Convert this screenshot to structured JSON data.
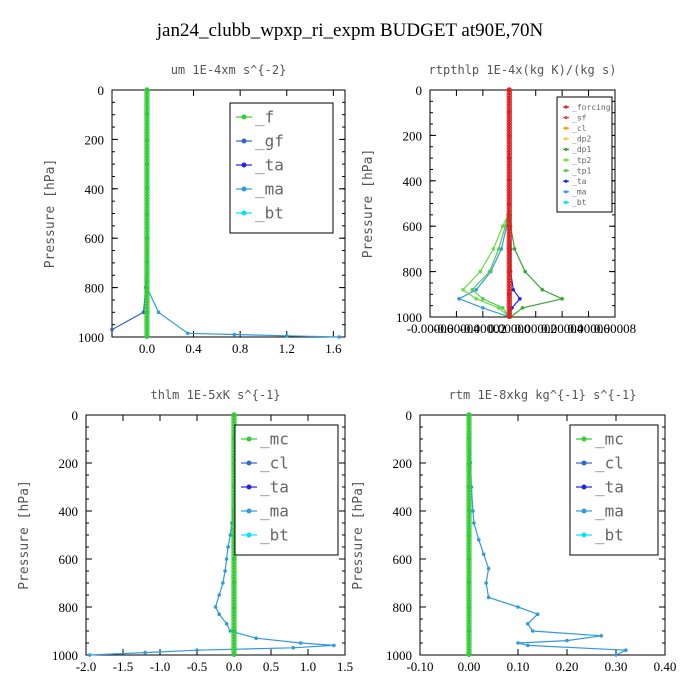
{
  "title": "jan24_clubb_wpxp_ri_expm  BUDGET at90E,70N",
  "chart_data": [
    {
      "type": "line",
      "title": "um  1E-4xm s^{-2}",
      "ylabel": "Pressure [hPa]",
      "xlim": [
        -0.3,
        1.7
      ],
      "ylim": [
        1000,
        0
      ],
      "xticks": [
        "0.0",
        "0.4",
        "0.8",
        "1.2",
        "1.6"
      ],
      "xtick_values": [
        0.0,
        0.4,
        0.8,
        1.2,
        1.6
      ],
      "yticks": [
        "0",
        "200",
        "400",
        "600",
        "800",
        "1000"
      ],
      "legend_position": "top-right",
      "series": [
        {
          "name": "_f",
          "color": "#33cc33",
          "x": [
            0,
            0,
            0,
            0,
            0,
            0,
            0,
            0,
            0,
            0,
            0
          ],
          "y": [
            0,
            100,
            200,
            300,
            400,
            500,
            600,
            700,
            800,
            900,
            1000
          ]
        },
        {
          "name": "_gf",
          "color": "#3366cc",
          "x": [
            0,
            0,
            0,
            0,
            0,
            0,
            0,
            0,
            -0.01,
            -0.03,
            -0.3
          ],
          "y": [
            0,
            100,
            200,
            300,
            400,
            500,
            600,
            700,
            800,
            900,
            970
          ]
        },
        {
          "name": "_ta",
          "color": "#2222ee",
          "x": [
            0,
            0,
            0,
            0,
            0,
            0,
            0,
            0,
            0,
            0,
            0
          ],
          "y": [
            0,
            100,
            200,
            300,
            400,
            500,
            600,
            700,
            800,
            900,
            1000
          ]
        },
        {
          "name": "_ma",
          "color": "#3399dd",
          "x": [
            0,
            0,
            0,
            0,
            0,
            0,
            0,
            0,
            0,
            0.1,
            0.35,
            0.75,
            1.2,
            1.65
          ],
          "y": [
            0,
            100,
            200,
            300,
            400,
            500,
            600,
            700,
            800,
            900,
            985,
            990,
            995,
            1000
          ]
        },
        {
          "name": "_bt",
          "color": "#00e5ee",
          "x": [
            0,
            0,
            0,
            0,
            0,
            0,
            0,
            0,
            0,
            0,
            0
          ],
          "y": [
            0,
            100,
            200,
            300,
            400,
            500,
            600,
            700,
            800,
            900,
            1000
          ]
        }
      ]
    },
    {
      "type": "line",
      "title": "rtpthlp  1E-4x(kg K)/(kg s)",
      "ylabel": "Pressure [hPa]",
      "xlim": [
        -6e-05,
        8e-05
      ],
      "ylim": [
        1000,
        0
      ],
      "xticks": [
        "-0.00006",
        "-0.00004",
        "-0.00002",
        "0.00000",
        "0.00002",
        "0.00004",
        "0.00006",
        "0.00008"
      ],
      "xtick_values": [
        -6e-05,
        -4e-05,
        -2e-05,
        0.0,
        2e-05,
        4e-05,
        6e-05,
        8e-05
      ],
      "yticks": [
        "0",
        "200",
        "400",
        "600",
        "800",
        "1000"
      ],
      "legend_position": "top-right",
      "series": [
        {
          "name": "_forcing",
          "color": "#dd2222",
          "x": [
            0,
            0,
            0,
            0,
            0,
            0,
            0,
            0,
            0,
            0,
            0
          ],
          "y": [
            0,
            100,
            200,
            300,
            400,
            500,
            600,
            700,
            800,
            900,
            1000
          ]
        },
        {
          "name": "_sf",
          "color": "#ee4444",
          "x": [
            0,
            0,
            0,
            0,
            0,
            0,
            0,
            0,
            0,
            0,
            0
          ],
          "y": [
            0,
            100,
            200,
            300,
            400,
            500,
            600,
            700,
            800,
            900,
            1000
          ]
        },
        {
          "name": "_cl",
          "color": "#ff9900",
          "x": [
            0,
            0,
            0,
            0,
            0,
            0,
            0,
            0,
            0,
            0,
            0
          ],
          "y": [
            0,
            100,
            200,
            300,
            400,
            500,
            600,
            700,
            800,
            900,
            1000
          ]
        },
        {
          "name": "_dp2",
          "color": "#ffcc33",
          "x": [
            0,
            0,
            0,
            0,
            0,
            0,
            0,
            0,
            0,
            0,
            0
          ],
          "y": [
            0,
            100,
            200,
            300,
            400,
            500,
            600,
            700,
            800,
            900,
            1000
          ]
        },
        {
          "name": "_dp1",
          "color": "#33aa33",
          "x": [
            0,
            0,
            0,
            0,
            5e-07,
            1e-06,
            4e-06,
            1.2e-05,
            2.5e-05,
            4e-05,
            1e-05,
            1e-06
          ],
          "y": [
            0,
            200,
            400,
            500,
            550,
            600,
            700,
            800,
            880,
            920,
            960,
            1000
          ]
        },
        {
          "name": "_tp2",
          "color": "#66dd44",
          "x": [
            0,
            0,
            0,
            0,
            -1e-06,
            -5e-06,
            -1.2e-05,
            -2.2e-05,
            -3.5e-05,
            -2.5e-05,
            -8e-06,
            0
          ],
          "y": [
            0,
            200,
            400,
            500,
            550,
            600,
            700,
            800,
            880,
            920,
            960,
            1000
          ]
        },
        {
          "name": "_tp1",
          "color": "#55cc55",
          "x": [
            0,
            0,
            0,
            0,
            -1e-06,
            -3e-06,
            -8e-06,
            -1.5e-05,
            -2.8e-05,
            -2e-05,
            -5e-06,
            0
          ],
          "y": [
            0,
            200,
            400,
            500,
            550,
            600,
            700,
            800,
            880,
            920,
            960,
            1000
          ]
        },
        {
          "name": "_ta",
          "color": "#2222ee",
          "x": [
            0,
            0,
            0,
            0,
            0,
            0,
            1e-06,
            1e-06,
            3e-06,
            8e-06,
            2e-06,
            0
          ],
          "y": [
            0,
            200,
            400,
            500,
            550,
            600,
            700,
            800,
            880,
            920,
            960,
            1000
          ]
        },
        {
          "name": "_ma",
          "color": "#3399dd",
          "x": [
            0,
            0,
            0,
            0,
            -5e-07,
            -2e-06,
            -6e-06,
            -1.4e-05,
            -2.5e-05,
            -3.8e-05,
            -2e-05,
            0
          ],
          "y": [
            0,
            200,
            400,
            500,
            550,
            600,
            700,
            800,
            880,
            920,
            960,
            1000
          ]
        },
        {
          "name": "_bt",
          "color": "#00e5ee",
          "x": [
            0,
            0,
            0,
            0,
            0,
            0,
            0,
            0,
            0,
            0,
            0
          ],
          "y": [
            0,
            100,
            200,
            300,
            400,
            500,
            600,
            700,
            800,
            900,
            1000
          ]
        }
      ]
    },
    {
      "type": "line",
      "title": "thlm  1E-5xK s^{-1}",
      "ylabel": "Pressure [hPa]",
      "xlim": [
        -2.0,
        1.5
      ],
      "ylim": [
        1000,
        0
      ],
      "xticks": [
        "-2.0",
        "-1.5",
        "-1.0",
        "-0.5",
        "0.0",
        "0.5",
        "1.0",
        "1.5"
      ],
      "xtick_values": [
        -2.0,
        -1.5,
        -1.0,
        -0.5,
        0.0,
        0.5,
        1.0,
        1.5
      ],
      "yticks": [
        "0",
        "200",
        "400",
        "600",
        "800",
        "1000"
      ],
      "legend_position": "top-right",
      "series": [
        {
          "name": "_mc",
          "color": "#33cc33",
          "x": [
            0,
            0,
            0,
            0,
            0,
            0,
            0,
            0,
            0,
            0,
            0
          ],
          "y": [
            0,
            100,
            200,
            300,
            400,
            500,
            600,
            700,
            800,
            900,
            1000
          ]
        },
        {
          "name": "_cl",
          "color": "#3366cc",
          "x": [
            0,
            0,
            0,
            0,
            0,
            0,
            0,
            0,
            0,
            0,
            0
          ],
          "y": [
            0,
            100,
            200,
            300,
            400,
            500,
            600,
            700,
            800,
            900,
            1000
          ]
        },
        {
          "name": "_ta",
          "color": "#2222ee",
          "x": [
            0,
            0,
            0,
            0,
            0,
            0,
            0,
            0,
            0,
            0,
            0
          ],
          "y": [
            0,
            100,
            200,
            300,
            400,
            500,
            600,
            700,
            800,
            900,
            1000
          ]
        },
        {
          "name": "_ma",
          "color": "#3399dd",
          "x": [
            0,
            0,
            -0.01,
            -0.03,
            -0.05,
            -0.08,
            -0.1,
            -0.12,
            -0.15,
            -0.2,
            -0.25,
            -0.2,
            -0.1,
            -0.05,
            0.3,
            0.9,
            1.35,
            0.8,
            -0.5,
            -1.2,
            -1.95
          ],
          "y": [
            0,
            200,
            400,
            450,
            500,
            550,
            600,
            650,
            700,
            750,
            800,
            830,
            870,
            900,
            930,
            950,
            960,
            970,
            980,
            990,
            1000
          ]
        },
        {
          "name": "_bt",
          "color": "#00e5ee",
          "x": [
            0,
            0,
            0,
            0,
            0,
            0,
            0,
            0,
            0,
            0,
            0
          ],
          "y": [
            0,
            100,
            200,
            300,
            400,
            500,
            600,
            700,
            800,
            900,
            1000
          ]
        }
      ]
    },
    {
      "type": "line",
      "title": "rtm  1E-8xkg kg^{-1} s^{-1}",
      "ylabel": "Pressure [hPa]",
      "xlim": [
        -0.1,
        0.4
      ],
      "ylim": [
        1000,
        0
      ],
      "xticks": [
        "-0.10",
        "0.00",
        "0.10",
        "0.20",
        "0.30",
        "0.40"
      ],
      "xtick_values": [
        -0.1,
        0.0,
        0.1,
        0.2,
        0.3,
        0.4
      ],
      "yticks": [
        "0",
        "200",
        "400",
        "600",
        "800",
        "1000"
      ],
      "legend_position": "top-right",
      "series": [
        {
          "name": "_mc",
          "color": "#33cc33",
          "x": [
            0,
            0,
            0,
            0,
            0,
            0,
            0,
            0,
            0,
            0,
            0
          ],
          "y": [
            0,
            100,
            200,
            300,
            400,
            500,
            600,
            700,
            800,
            900,
            1000
          ]
        },
        {
          "name": "_cl",
          "color": "#3366cc",
          "x": [
            0,
            0,
            0,
            0,
            0,
            0,
            0,
            0,
            0,
            0,
            0
          ],
          "y": [
            0,
            100,
            200,
            300,
            400,
            500,
            600,
            700,
            800,
            900,
            1000
          ]
        },
        {
          "name": "_ta",
          "color": "#2222ee",
          "x": [
            0,
            0,
            0,
            0,
            0,
            0,
            0,
            0,
            0,
            0,
            0
          ],
          "y": [
            0,
            100,
            200,
            300,
            400,
            500,
            600,
            700,
            800,
            900,
            1000
          ]
        },
        {
          "name": "_ma",
          "color": "#3399dd",
          "x": [
            0,
            0.003,
            0.005,
            0.008,
            0.01,
            0.02,
            0.03,
            0.04,
            0.035,
            0.04,
            0.1,
            0.14,
            0.12,
            0.13,
            0.27,
            0.2,
            0.1,
            0.12,
            0.32,
            0.3
          ],
          "y": [
            0,
            200,
            300,
            400,
            450,
            520,
            580,
            640,
            700,
            760,
            800,
            830,
            870,
            900,
            920,
            940,
            950,
            960,
            980,
            1000
          ]
        },
        {
          "name": "_bt",
          "color": "#00e5ee",
          "x": [
            0,
            0,
            0,
            0,
            0,
            0,
            0,
            0,
            0,
            0,
            0
          ],
          "y": [
            0,
            100,
            200,
            300,
            400,
            500,
            600,
            700,
            800,
            900,
            1000
          ]
        }
      ]
    }
  ]
}
